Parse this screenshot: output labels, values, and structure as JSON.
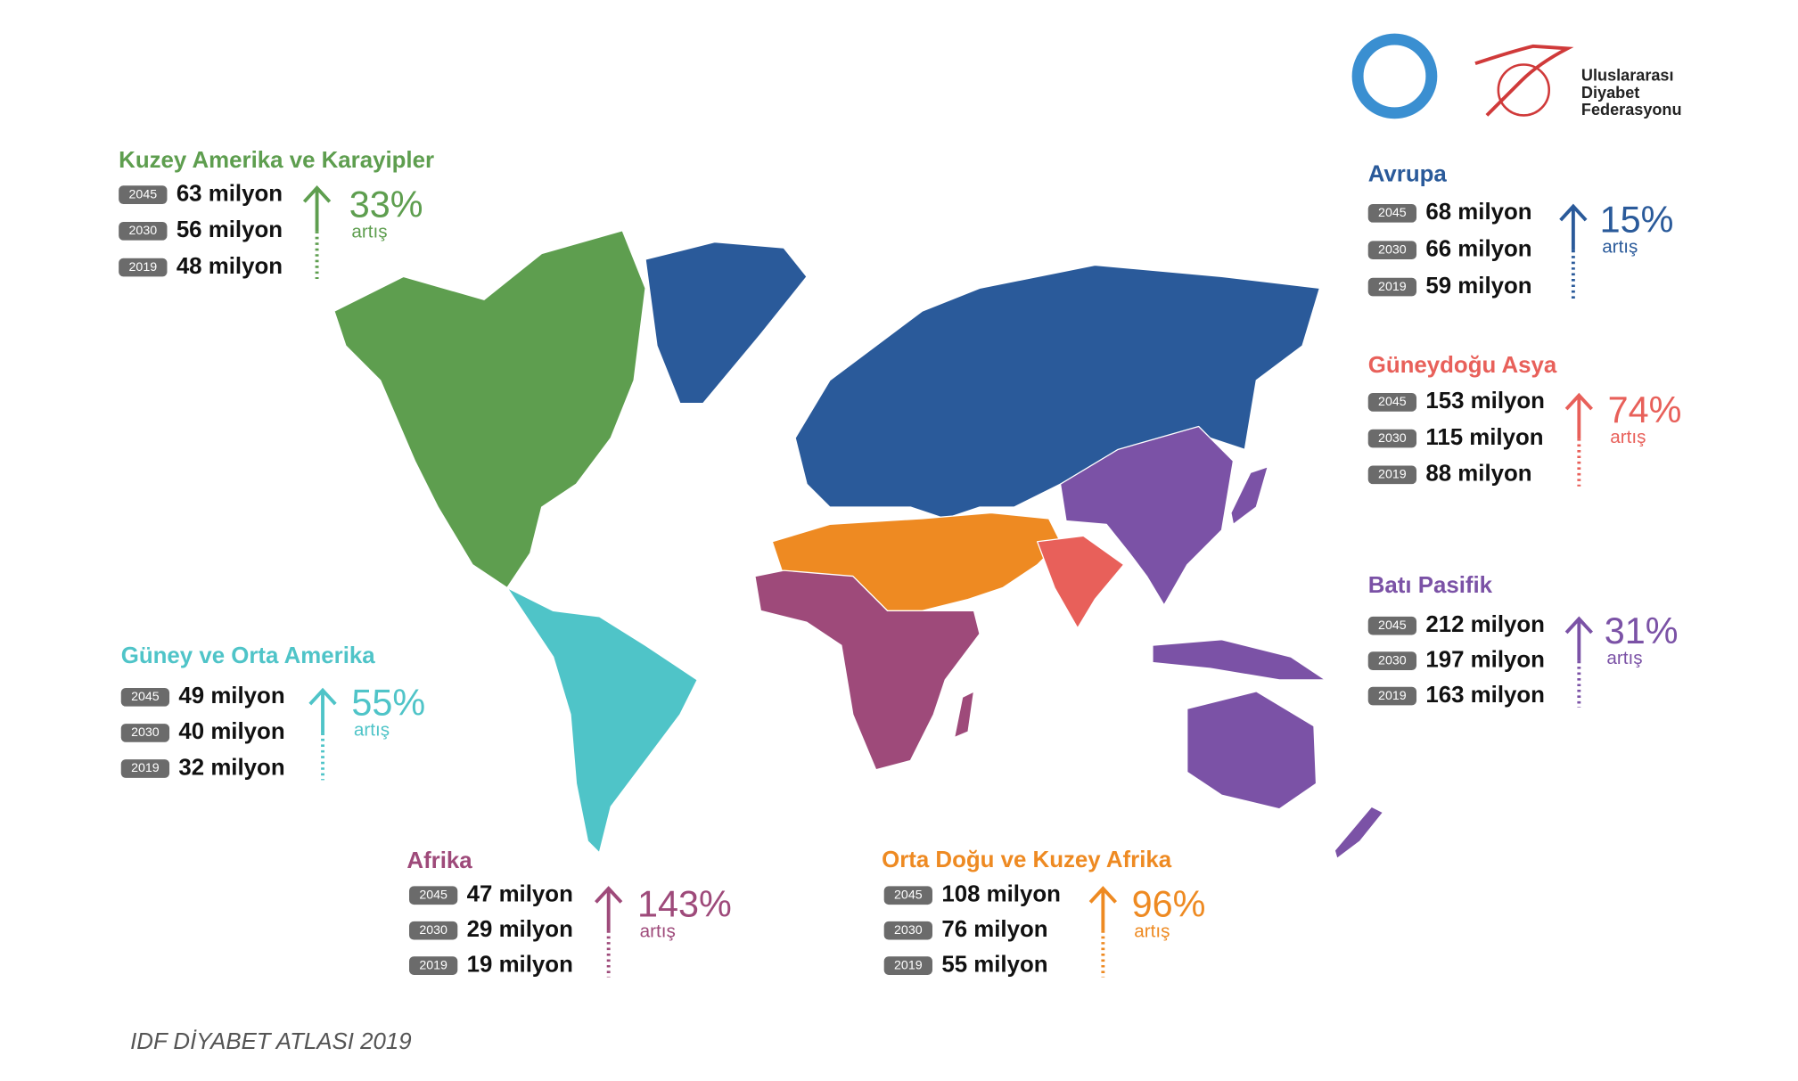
{
  "logo": {
    "lines": [
      "Uluslararası",
      "Diyabet",
      "Federasyonu"
    ]
  },
  "footer": "IDF DİYABET ATLASI 2019",
  "regions": [
    {
      "title": "Kuzey Amerika ve Karayipler",
      "color": "#5e9e4f",
      "rows": [
        {
          "year": "2045",
          "value": "63 milyon"
        },
        {
          "year": "2030",
          "value": "56 milyon"
        },
        {
          "year": "2019",
          "value": "48 milyon"
        }
      ],
      "increase": "33%",
      "increase_label": "artış"
    },
    {
      "title": "Avrupa",
      "color": "#2a5a9a",
      "rows": [
        {
          "year": "2045",
          "value": "68 milyon"
        },
        {
          "year": "2030",
          "value": "66 milyon"
        },
        {
          "year": "2019",
          "value": "59 milyon"
        }
      ],
      "increase": "15%",
      "increase_label": "artış"
    },
    {
      "title": "Güneydoğu Asya",
      "color": "#e8605a",
      "rows": [
        {
          "year": "2045",
          "value": "153 milyon"
        },
        {
          "year": "2030",
          "value": "115 milyon"
        },
        {
          "year": "2019",
          "value": "88 milyon"
        }
      ],
      "increase": "74%",
      "increase_label": "artış"
    },
    {
      "title": "Batı Pasifik",
      "color": "#7b52a6",
      "rows": [
        {
          "year": "2045",
          "value": "212 milyon"
        },
        {
          "year": "2030",
          "value": "197 milyon"
        },
        {
          "year": "2019",
          "value": "163 milyon"
        }
      ],
      "increase": "31%",
      "increase_label": "artış"
    },
    {
      "title": "Güney ve Orta Amerika",
      "color": "#4fc4c8",
      "rows": [
        {
          "year": "2045",
          "value": "49 milyon"
        },
        {
          "year": "2030",
          "value": "40 milyon"
        },
        {
          "year": "2019",
          "value": "32 milyon"
        }
      ],
      "increase": "55%",
      "increase_label": "artış"
    },
    {
      "title": "Afrika",
      "color": "#9e4a7a",
      "rows": [
        {
          "year": "2045",
          "value": "47 milyon"
        },
        {
          "year": "2030",
          "value": "29 milyon"
        },
        {
          "year": "2019",
          "value": "19 milyon"
        }
      ],
      "increase": "143%",
      "increase_label": "artış"
    },
    {
      "title": "Orta Doğu ve Kuzey Afrika",
      "color": "#ee8a22",
      "rows": [
        {
          "year": "2045",
          "value": "108 milyon"
        },
        {
          "year": "2030",
          "value": "76 milyon"
        },
        {
          "year": "2019",
          "value": "55 milyon"
        }
      ],
      "increase": "96%",
      "increase_label": "artış"
    }
  ]
}
